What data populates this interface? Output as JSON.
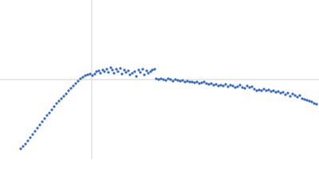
{
  "chart_data": {
    "type": "scatter",
    "color": "#3b6bc0",
    "xlim": [
      0,
      400
    ],
    "ylim": [
      0,
      200
    ],
    "reference_lines": {
      "x": 115,
      "y": 100
    },
    "x": [
      26,
      29,
      32,
      35,
      38,
      41,
      44,
      47,
      50,
      53,
      56,
      59,
      62,
      65,
      68,
      71,
      74,
      77,
      80,
      83,
      86,
      89,
      92,
      95,
      98,
      101,
      104,
      107,
      110,
      113,
      116,
      119,
      121,
      124,
      126,
      129,
      131,
      134,
      136,
      139,
      141,
      143,
      146,
      148,
      151,
      153,
      156,
      158,
      161,
      163,
      166,
      169,
      171,
      174,
      176,
      179,
      181,
      184,
      186,
      189,
      191,
      194,
      196,
      199,
      202,
      205,
      208,
      211,
      214,
      217,
      220,
      223,
      226,
      229,
      232,
      235,
      238,
      241,
      244,
      247,
      250,
      253,
      256,
      259,
      262,
      265,
      268,
      271,
      274,
      277,
      280,
      283,
      286,
      289,
      292,
      295,
      298,
      301,
      304,
      307,
      310,
      313,
      316,
      319,
      322,
      325,
      328,
      331,
      334,
      337,
      340,
      343,
      346,
      349,
      352,
      355,
      358,
      361,
      364,
      367,
      370,
      373,
      376,
      379,
      382,
      385,
      388,
      391,
      394,
      397
    ],
    "values": [
      13,
      16,
      19,
      23,
      27,
      31,
      35,
      39,
      43,
      47,
      51,
      55,
      58,
      62,
      66,
      70,
      73,
      76,
      79,
      82,
      86,
      89,
      92,
      95,
      98,
      101,
      103,
      105,
      106,
      107,
      105,
      107,
      110,
      111,
      108,
      112,
      110,
      113,
      109,
      115,
      112,
      108,
      113,
      110,
      114,
      107,
      112,
      109,
      111,
      106,
      108,
      110,
      104,
      112,
      109,
      113,
      106,
      111,
      108,
      110,
      112,
      113,
      101,
      100,
      101,
      100,
      99,
      101,
      100,
      98,
      100,
      99,
      98,
      99,
      97,
      98,
      97,
      97,
      96,
      97,
      95,
      96,
      97,
      95,
      94,
      95,
      93,
      94,
      92,
      93,
      92,
      94,
      91,
      93,
      92,
      90,
      91,
      93,
      90,
      89,
      92,
      90,
      91,
      88,
      86,
      87,
      86,
      88,
      86,
      87,
      85,
      86,
      84,
      85,
      83,
      84,
      81,
      83,
      79,
      82,
      80,
      78,
      80,
      76,
      75,
      74,
      73,
      72,
      70,
      69
    ]
  }
}
